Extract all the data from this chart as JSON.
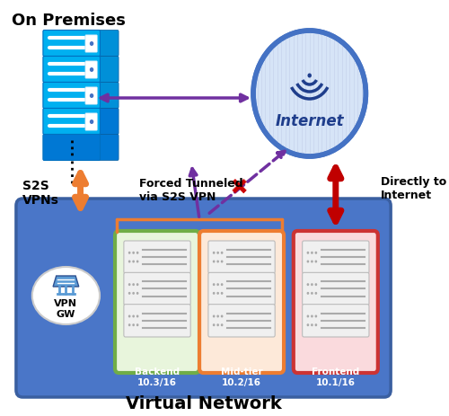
{
  "title": "Virtual Network",
  "on_premises_label": "On Premises",
  "internet_label": "Internet",
  "vpn_gw_label": "VPN\nGW",
  "s2s_label": "S2S\nVPNs",
  "forced_tunnel_label": "Forced Tunneled\nvia S2S VPN",
  "directly_label": "Directly to\nInternet",
  "backend_label": "Backend\n10.3/16",
  "midtier_label": "Mid-tier\n10.2/16",
  "frontend_label": "Frontend\n10.1/16",
  "vnet_bg_color": "#4A76C8",
  "vnet_border_color": "#3A5FA0",
  "backend_bg": "#E8F5DC",
  "backend_border": "#70AD47",
  "midtier_bg": "#FDE9D9",
  "midtier_border": "#ED7D31",
  "frontend_bg": "#FADADD",
  "frontend_border": "#CC3333",
  "orange_arrow": "#ED7D31",
  "purple_arrow": "#7030A0",
  "red_arrow": "#C00000",
  "internet_fill": "#D6E4F7",
  "internet_border": "#4472C4",
  "internet_text": "#1F3E8C",
  "on_premises_server_dark": "#0078D4",
  "on_premises_server_light": "#00B0F0",
  "bracket_color": "#ED7D31",
  "label_color_white": "#FFFFFF",
  "server_gray": "#D0D0D0",
  "server_white": "#F0F0F0"
}
